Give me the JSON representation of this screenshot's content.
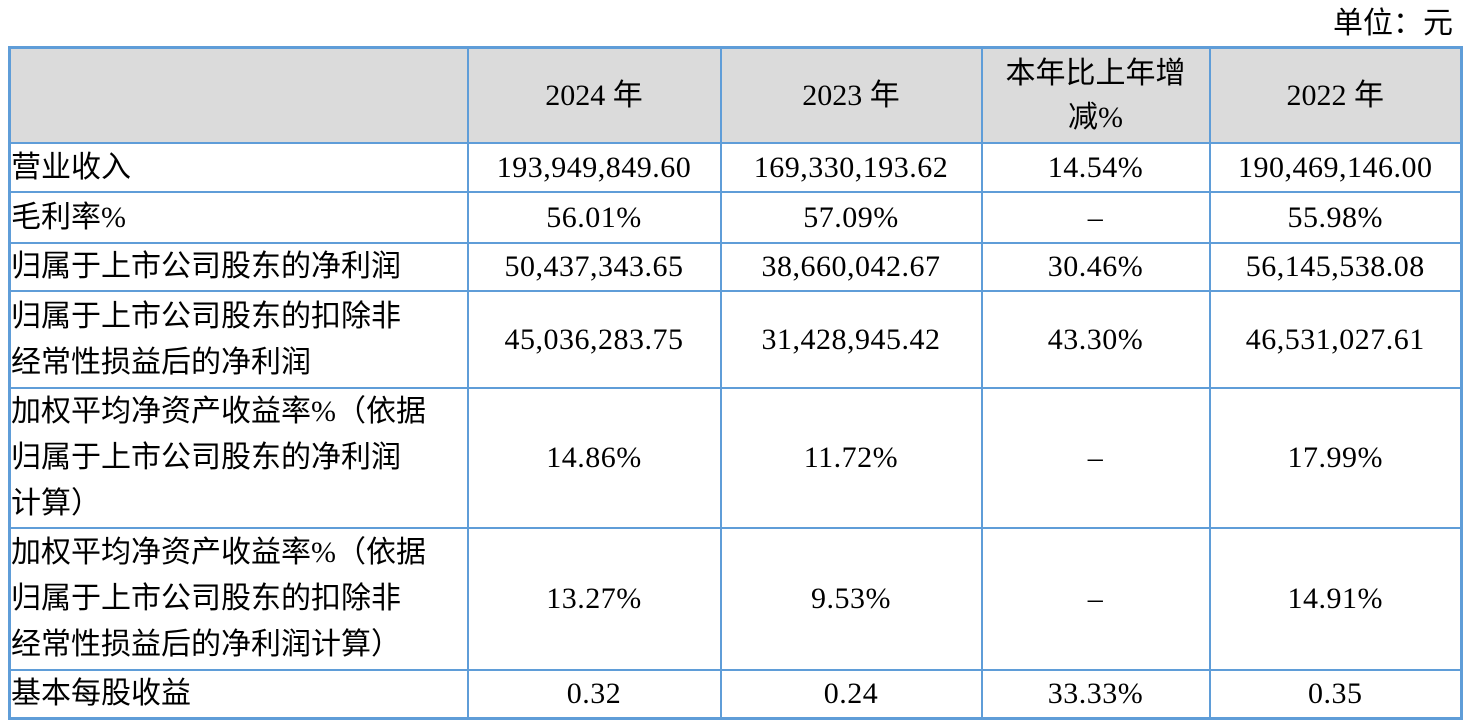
{
  "unit_label": "单位：元",
  "colors": {
    "table_border": "#5f9dd8",
    "header_bg": "#dbdbdb",
    "text": "#000000",
    "page_bg": "#ffffff"
  },
  "table": {
    "columns": [
      {
        "key": "label",
        "header": ""
      },
      {
        "key": "y2024",
        "header": "2024 年"
      },
      {
        "key": "y2023",
        "header": "2023 年"
      },
      {
        "key": "yoy",
        "header": "本年比上年增\n减%"
      },
      {
        "key": "y2022",
        "header": "2022 年"
      }
    ],
    "rows": [
      {
        "label": "营业收入",
        "y2024": "193,949,849.60",
        "y2023": "169,330,193.62",
        "yoy": "14.54%",
        "y2022": "190,469,146.00"
      },
      {
        "label": "毛利率%",
        "y2024": "56.01%",
        "y2023": "57.09%",
        "yoy": "–",
        "y2022": "55.98%"
      },
      {
        "label": "归属于上市公司股东的净利润",
        "y2024": "50,437,343.65",
        "y2023": "38,660,042.67",
        "yoy": "30.46%",
        "y2022": "56,145,538.08"
      },
      {
        "label": "归属于上市公司股东的扣除非\n经常性损益后的净利润",
        "y2024": "45,036,283.75",
        "y2023": "31,428,945.42",
        "yoy": "43.30%",
        "y2022": "46,531,027.61"
      },
      {
        "label": "加权平均净资产收益率%（依据\n归属于上市公司股东的净利润\n计算）",
        "y2024": "14.86%",
        "y2023": "11.72%",
        "yoy": "–",
        "y2022": "17.99%"
      },
      {
        "label": "加权平均净资产收益率%（依据\n归属于上市公司股东的扣除非\n经常性损益后的净利润计算）",
        "y2024": "13.27%",
        "y2023": "9.53%",
        "yoy": "–",
        "y2022": "14.91%"
      },
      {
        "label": "基本每股收益",
        "y2024": "0.32",
        "y2023": "0.24",
        "yoy": "33.33%",
        "y2022": "0.35"
      }
    ]
  }
}
